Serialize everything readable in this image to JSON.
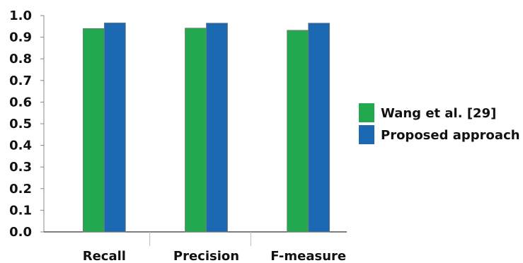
{
  "chart_data": {
    "type": "bar",
    "categories": [
      "Recall",
      "Precision",
      "F-measure"
    ],
    "series": [
      {
        "name": "Wang et al. [29]",
        "color": "#22a84f",
        "values": [
          0.94,
          0.942,
          0.932
        ]
      },
      {
        "name": "Proposed approach",
        "color": "#1b68b3",
        "values": [
          0.966,
          0.965,
          0.965
        ]
      }
    ],
    "ylim": [
      0,
      1.0
    ],
    "yticks": [
      "0.0",
      "0.1",
      "0.2",
      "0.3",
      "0.4",
      "0.5",
      "0.6",
      "0.7",
      "0.8",
      "0.9",
      "1.0"
    ],
    "legend_position": "right",
    "grid": false
  }
}
